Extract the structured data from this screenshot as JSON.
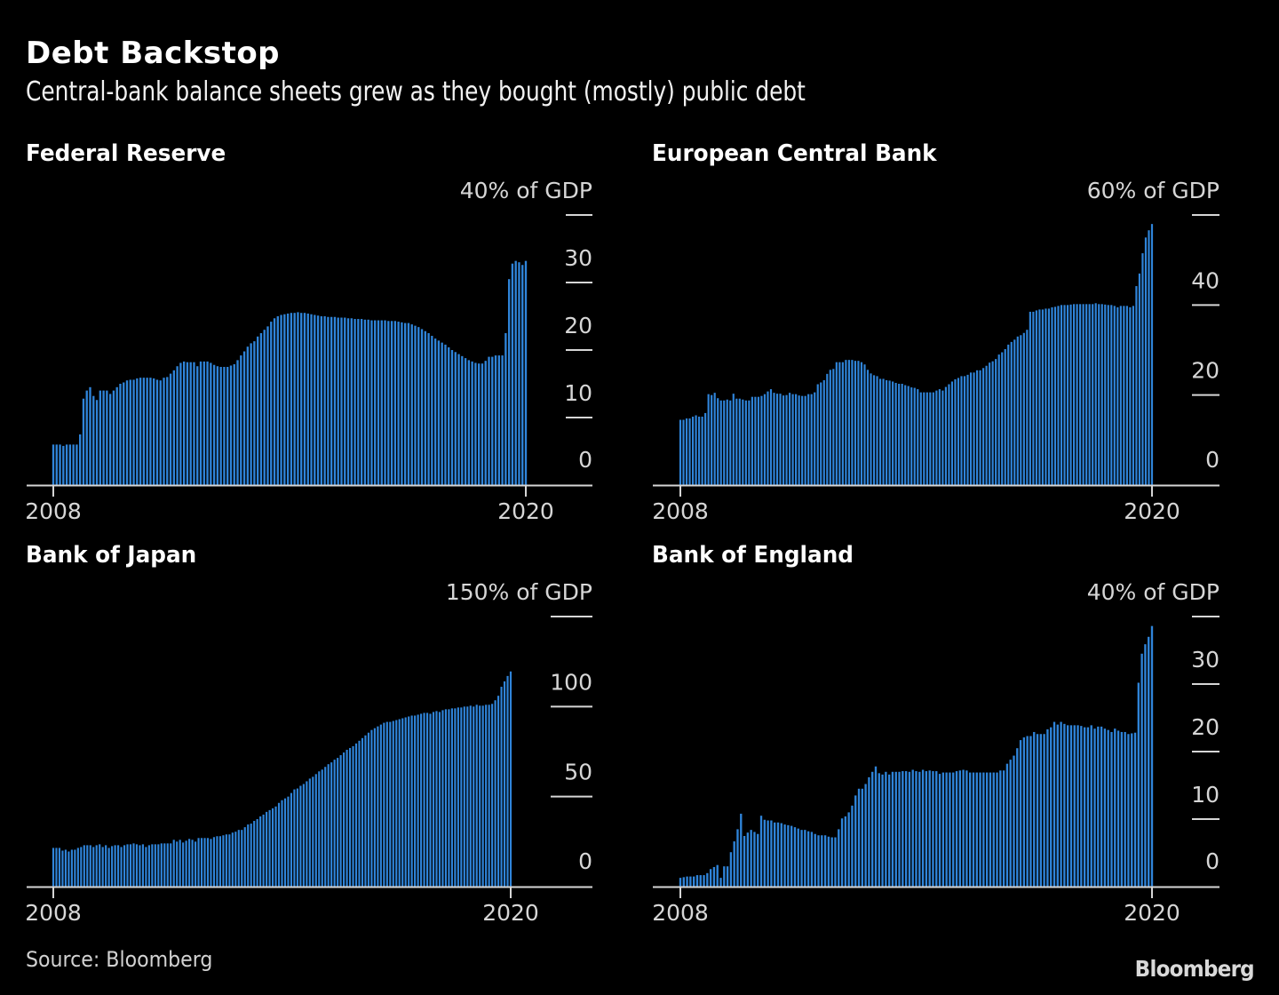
{
  "title": "Debt Backstop",
  "subtitle": "Central-bank balance sheets grew as they bought (mostly) public debt",
  "source": "Source: Bloomberg",
  "logo": "Bloomberg",
  "colors": {
    "background": "#000000",
    "bar": "#2f84d9",
    "bar_edge": "#4a9be8",
    "axis": "#d6d6d6",
    "text": "#ffffff"
  },
  "chart_data": [
    {
      "type": "bar",
      "title": "Federal Reserve",
      "unit_label": "40% of GDP",
      "xlabel": "",
      "ylabel": "% of GDP",
      "ylim": [
        0,
        40
      ],
      "yticks": [
        0,
        10,
        20,
        30,
        40
      ],
      "ytick_labels": [
        "0",
        "10",
        "20",
        "30",
        "40% of GDP"
      ],
      "x_tick_labels": [
        "2008",
        "2020"
      ],
      "x_range": [
        "2008",
        "2020"
      ],
      "frequency": "monthly",
      "grid": false,
      "values": [
        6,
        6,
        6,
        5.8,
        6,
        6,
        6,
        6,
        7.5,
        12.8,
        14,
        14.5,
        13.2,
        12.6,
        14,
        14,
        14,
        13.5,
        14,
        14.5,
        15,
        15.2,
        15.5,
        15.6,
        15.6,
        15.8,
        15.9,
        15.9,
        15.9,
        15.9,
        15.8,
        15.6,
        15.5,
        15.9,
        16,
        16.5,
        17,
        17.6,
        18.1,
        18.3,
        18.2,
        18.2,
        18.2,
        17.6,
        18.3,
        18.3,
        18.3,
        18.1,
        17.8,
        17.6,
        17.5,
        17.5,
        17.5,
        17.7,
        17.9,
        18.5,
        19.2,
        19.8,
        20.5,
        21,
        21.3,
        22,
        22.5,
        23,
        23.5,
        24.2,
        24.7,
        25,
        25.2,
        25.3,
        25.4,
        25.5,
        25.5,
        25.6,
        25.5,
        25.5,
        25.4,
        25.3,
        25.2,
        25.1,
        25,
        25,
        24.9,
        24.9,
        24.9,
        24.8,
        24.8,
        24.8,
        24.7,
        24.7,
        24.6,
        24.6,
        24.6,
        24.5,
        24.5,
        24.4,
        24.4,
        24.4,
        24.4,
        24.4,
        24.3,
        24.3,
        24.3,
        24.2,
        24.1,
        24,
        24,
        23.8,
        23.6,
        23.4,
        23.1,
        22.8,
        22.5,
        22.1,
        21.7,
        21.4,
        21.1,
        20.8,
        20.4,
        20,
        19.7,
        19.4,
        19.1,
        18.8,
        18.5,
        18.3,
        18.1,
        18,
        18,
        18.4,
        19,
        19,
        19.2,
        19.2,
        19.2,
        22.5,
        30.5,
        32.8,
        33.2,
        33,
        32.6,
        33.2
      ],
      "values_note": "Estimated from bar heights"
    },
    {
      "type": "bar",
      "title": "European Central Bank",
      "unit_label": "60% of GDP",
      "xlabel": "",
      "ylabel": "% of GDP",
      "ylim": [
        0,
        60
      ],
      "yticks": [
        0,
        20,
        40,
        60
      ],
      "ytick_labels": [
        "0",
        "20",
        "40",
        "60% of GDP"
      ],
      "x_tick_labels": [
        "2008",
        "2020"
      ],
      "x_range": [
        "2008",
        "2020"
      ],
      "frequency": "monthly",
      "grid": false,
      "values": [
        14.5,
        14.5,
        14.8,
        14.8,
        15.2,
        15.5,
        15.2,
        15.2,
        16,
        20.2,
        20,
        20.5,
        19.3,
        18.8,
        18.8,
        19,
        18.8,
        20.3,
        19.2,
        19.2,
        19,
        18.8,
        18.8,
        19.6,
        19.6,
        19.6,
        19.8,
        20.2,
        20.8,
        21.3,
        20.5,
        20.3,
        20.3,
        19.9,
        20,
        20.5,
        20.2,
        20.2,
        19.9,
        19.8,
        19.8,
        20.2,
        20.2,
        20.6,
        22.4,
        22.8,
        23.3,
        24.7,
        25.6,
        25.8,
        27.3,
        27.3,
        27.3,
        27.8,
        27.8,
        27.8,
        27.6,
        27.6,
        27.3,
        26.8,
        25.6,
        24.8,
        24.4,
        24.2,
        23.6,
        23.6,
        23.3,
        23.2,
        23,
        22.7,
        22.5,
        22.5,
        22.2,
        22,
        21.7,
        21.6,
        21.3,
        20.6,
        20.6,
        20.6,
        20.6,
        20.6,
        21,
        21.3,
        21,
        21.8,
        22.4,
        23,
        23.5,
        23.8,
        24.2,
        24.2,
        24.5,
        25,
        25,
        25.5,
        25.5,
        26,
        26.5,
        27.2,
        27.5,
        28,
        29,
        29.5,
        30.2,
        31.2,
        31.8,
        32.3,
        33,
        33.3,
        33.8,
        34.5,
        38.5,
        38.5,
        38.8,
        39,
        39,
        39.2,
        39.2,
        39.5,
        39.6,
        39.8,
        40,
        40,
        40,
        40.1,
        40.2,
        40.2,
        40.2,
        40.2,
        40.2,
        40.2,
        40.2,
        40.4,
        40.2,
        40.2,
        40.1,
        40,
        40,
        39.8,
        39.5,
        39.8,
        39.8,
        39.8,
        39.5,
        39.8,
        44.2,
        47,
        51.5,
        55,
        56.6,
        58
      ],
      "values_note": "Estimated from bar heights"
    },
    {
      "type": "bar",
      "title": "Bank of Japan",
      "unit_label": "150% of GDP",
      "xlabel": "",
      "ylabel": "% of GDP",
      "ylim": [
        0,
        150
      ],
      "yticks": [
        0,
        50,
        100,
        150
      ],
      "ytick_labels": [
        "0",
        "50",
        "100",
        "150% of GDP"
      ],
      "x_tick_labels": [
        "2008",
        "2020"
      ],
      "x_range": [
        "2008",
        "2020"
      ],
      "frequency": "monthly",
      "grid": false,
      "values": [
        21.5,
        21.5,
        21.5,
        20,
        20.5,
        19.5,
        20.5,
        20.5,
        21.5,
        22,
        23,
        23,
        23,
        22,
        23,
        23.5,
        22,
        23,
        21.5,
        22.5,
        23,
        23,
        22,
        23,
        23.5,
        23.5,
        24,
        23.5,
        23,
        23.5,
        22,
        23,
        23.5,
        23.5,
        23.5,
        24,
        24,
        24,
        24,
        26,
        25,
        26,
        24.5,
        25.5,
        26.5,
        26,
        25,
        27,
        27,
        27,
        27,
        26.5,
        27.5,
        28,
        28,
        28.5,
        29,
        29,
        30,
        30.5,
        31.5,
        31.5,
        33,
        34.5,
        35,
        36.5,
        37.5,
        39,
        40,
        41.5,
        42.5,
        43.5,
        44.5,
        46.5,
        48,
        49,
        50,
        52,
        54,
        54.5,
        56,
        57,
        58.5,
        60,
        61,
        62.5,
        64,
        65,
        66.5,
        68,
        69,
        70.5,
        71.5,
        73,
        74.5,
        76,
        77,
        78,
        79.5,
        81,
        82.5,
        84,
        85.5,
        87,
        88,
        89,
        90,
        91,
        91.5,
        91.5,
        92,
        92.5,
        93,
        93.5,
        94,
        94.5,
        95,
        95,
        95.5,
        96,
        96.5,
        96.5,
        96,
        97,
        97.5,
        97,
        98,
        98.5,
        98.5,
        99,
        99,
        99.5,
        99.5,
        100,
        100,
        100.5,
        100,
        101,
        100.5,
        100.5,
        101,
        101,
        101.5,
        103.5,
        106,
        111,
        114,
        117,
        119.5
      ],
      "values_note": "Estimated from bar heights"
    },
    {
      "type": "bar",
      "title": "Bank of England",
      "unit_label": "40% of GDP",
      "xlabel": "",
      "ylabel": "% of GDP",
      "ylim": [
        0,
        40
      ],
      "yticks": [
        0,
        10,
        20,
        30,
        40
      ],
      "ytick_labels": [
        "0",
        "10",
        "20",
        "30",
        "40% of GDP"
      ],
      "x_tick_labels": [
        "2008",
        "2020"
      ],
      "x_range": [
        "2008",
        "2020"
      ],
      "frequency": "monthly",
      "grid": false,
      "values": [
        1.3,
        1.4,
        1.5,
        1.5,
        1.5,
        1.7,
        1.7,
        1.7,
        2,
        2.6,
        2.9,
        3.2,
        1.3,
        3,
        3,
        5.1,
        6.7,
        8.5,
        10.8,
        7.5,
        8,
        8.4,
        8.1,
        7.8,
        10.5,
        9.9,
        9.8,
        9.8,
        9.5,
        9.5,
        9.4,
        9.2,
        9.1,
        9,
        8.8,
        8.6,
        8.4,
        8.4,
        8.2,
        8.1,
        7.8,
        7.6,
        7.6,
        7.6,
        7.4,
        7.3,
        7.3,
        8.5,
        10.1,
        10.4,
        11,
        12,
        13.5,
        14.5,
        14.5,
        15.2,
        16.2,
        17,
        17.8,
        16.8,
        16.6,
        17,
        16.6,
        17,
        17,
        17,
        17.1,
        17.1,
        17,
        17.3,
        17.1,
        17,
        17.3,
        17.1,
        17.2,
        17.1,
        17.1,
        16.7,
        16.9,
        16.9,
        16.9,
        16.9,
        17.1,
        17.2,
        17.3,
        17.2,
        16.9,
        16.9,
        16.9,
        16.9,
        16.9,
        16.9,
        16.9,
        16.9,
        16.9,
        17.2,
        17.2,
        18.2,
        18.8,
        19.4,
        20.5,
        21.7,
        22.1,
        22.3,
        22.3,
        22.9,
        22.6,
        22.6,
        22.6,
        23.3,
        23.6,
        24.4,
        24,
        24.4,
        24.1,
        23.9,
        23.9,
        23.9,
        23.9,
        23.8,
        23.6,
        23.6,
        23.9,
        23.4,
        23.7,
        23.7,
        23.4,
        23.2,
        22.9,
        23.4,
        23.1,
        22.9,
        22.9,
        22.6,
        22.7,
        22.8,
        30.2,
        34.5,
        35.9,
        37,
        38.6
      ]
    }
  ]
}
